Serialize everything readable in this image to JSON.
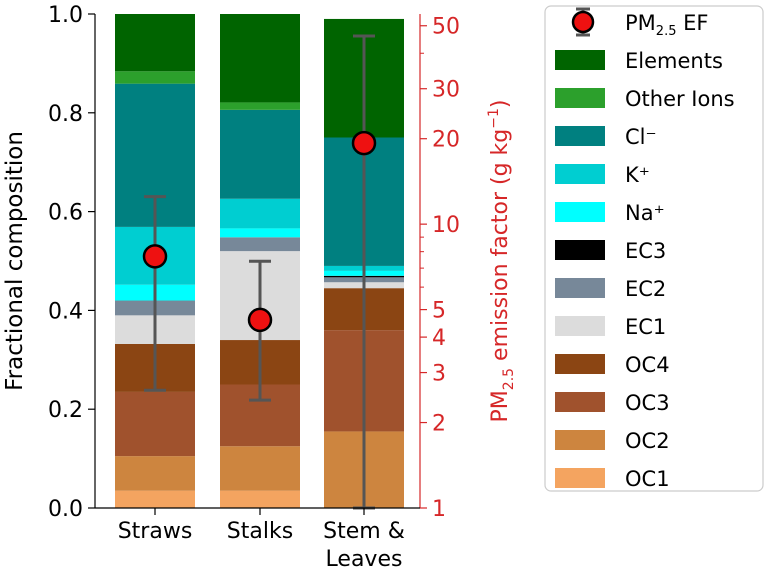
{
  "chart_data": {
    "type": "bar",
    "stacked": true,
    "categories": [
      "Straws",
      "Stalks",
      "Stem & Leaves"
    ],
    "category_lines": [
      [
        "Straws"
      ],
      [
        "Stalks"
      ],
      [
        "Stem &",
        "Leaves"
      ]
    ],
    "ylabel": "Fractional composition",
    "ylim": [
      0,
      1
    ],
    "yticks": [
      "0.0",
      "0.2",
      "0.4",
      "0.6",
      "0.8",
      "1.0"
    ],
    "ytick_values": [
      0,
      0.2,
      0.4,
      0.6,
      0.8,
      1.0
    ],
    "series": [
      {
        "name": "OC1",
        "color": "#f4a460",
        "values": [
          0.035,
          0.035,
          0.0
        ]
      },
      {
        "name": "OC2",
        "color": "#cd853f",
        "values": [
          0.07,
          0.09,
          0.155
        ]
      },
      {
        "name": "OC3",
        "color": "#a0522d",
        "values": [
          0.13,
          0.125,
          0.205
        ]
      },
      {
        "name": "OC4",
        "color": "#8b4513",
        "values": [
          0.097,
          0.09,
          0.085
        ]
      },
      {
        "name": "EC1",
        "color": "#dcdcdc",
        "values": [
          0.058,
          0.18,
          0.012
        ]
      },
      {
        "name": "EC2",
        "color": "#778899",
        "values": [
          0.03,
          0.028,
          0.01
        ]
      },
      {
        "name": "EC3",
        "color": "#000000",
        "values": [
          0.0,
          0.0,
          0.003
        ]
      },
      {
        "name": "Na⁺",
        "color": "#00ffff",
        "values": [
          0.032,
          0.018,
          0.01
        ]
      },
      {
        "name": "K⁺",
        "color": "#00ced1",
        "values": [
          0.117,
          0.06,
          0.01
        ]
      },
      {
        "name": "Cl⁻",
        "color": "#008080",
        "values": [
          0.29,
          0.18,
          0.26
        ]
      },
      {
        "name": "Other Ions",
        "color": "#2ca02c",
        "values": [
          0.025,
          0.015,
          0.0
        ]
      },
      {
        "name": "Elements",
        "color": "#006400",
        "values": [
          0.116,
          0.179,
          0.24
        ]
      }
    ],
    "ef_axis": {
      "label_main": "PM",
      "label_sub": "2.5",
      "label_rest": " emission factor (g kg",
      "label_sup": "−1",
      "label_close": ")",
      "scale": "log",
      "range": [
        1,
        55
      ],
      "ticks": [
        "1",
        "2",
        "3",
        "4",
        "5",
        "10",
        "20",
        "30",
        "50"
      ],
      "tick_values": [
        1,
        2,
        3,
        4,
        5,
        10,
        20,
        30,
        50
      ],
      "color": "#d62728"
    },
    "ef_points": [
      {
        "category": "Straws",
        "value": 7.7,
        "lower": 2.6,
        "upper": 12.5
      },
      {
        "category": "Stalks",
        "value": 4.6,
        "lower": 2.4,
        "upper": 7.4
      },
      {
        "category": "Stem & Leaves",
        "value": 19.3,
        "lower": 1.0,
        "upper": 46.0
      }
    ],
    "legend": {
      "placement": "right",
      "ef_main": "PM",
      "ef_sub": "2.5",
      "ef_rest": " EF",
      "order": [
        "Elements",
        "Other Ions",
        "Cl⁻",
        "K⁺",
        "Na⁺",
        "EC3",
        "EC2",
        "EC1",
        "OC4",
        "OC3",
        "OC2",
        "OC1"
      ]
    },
    "grid": false
  }
}
